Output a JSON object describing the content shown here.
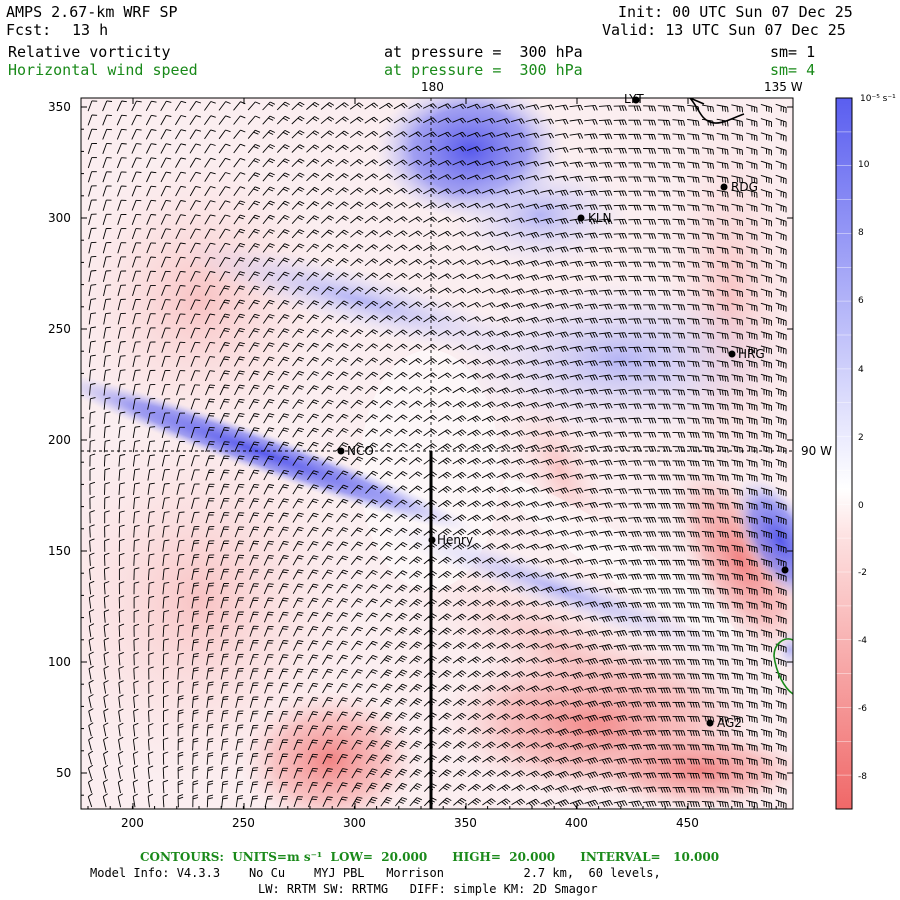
{
  "header": {
    "model": "AMPS 2.67-km WRF SP",
    "fcst_label": "Fcst:",
    "fcst_value": "13 h",
    "init": "Init: 00 UTC Sun 07 Dec 25",
    "valid": "Valid: 13 UTC Sun 07 Dec 25",
    "field1": "Relative vorticity",
    "field2": "Horizontal wind speed",
    "pressure1": "at pressure =  300 hPa",
    "pressure2": "at pressure =  300 hPa",
    "sm1": "sm= 1",
    "sm2": "sm= 4"
  },
  "map": {
    "x_ticks": [
      "200",
      "250",
      "300",
      "350",
      "400",
      "450"
    ],
    "y_ticks": [
      "50",
      "100",
      "150",
      "200",
      "250",
      "300",
      "350"
    ],
    "meridian_labels": {
      "top_180": "180",
      "top_135w": "135 W",
      "right_90w": "90 W"
    },
    "stations": [
      {
        "label": "LYT"
      },
      {
        "label": "RDG"
      },
      {
        "label": "KLN"
      },
      {
        "label": "HRG"
      },
      {
        "label": "NCO"
      },
      {
        "label": "Henry"
      },
      {
        "label": "AG2"
      }
    ]
  },
  "colorbar": {
    "unit": "10⁻⁵ s⁻¹",
    "labels": [
      "10",
      "8",
      "6",
      "4",
      "2",
      "0",
      "-2",
      "-4",
      "-6",
      "-8"
    ],
    "colors": {
      "positive_strong": "#5a5ef0",
      "positive_weak": "#e8e8ff",
      "negative_weak": "#ffe8e8",
      "negative_strong": "#f07070"
    }
  },
  "footer": {
    "contours": "CONTOURS:  UNITS=m s⁻¹  LOW=  20.000      HIGH=  20.000      INTERVAL=   10.000",
    "model_info": "Model Info: V4.3.3    No Cu    MYJ PBL   Morrison           2.7 km,  60 levels,",
    "physics": "LW: RRTM SW: RRTMG   DIFF: simple KM: 2D Smagor"
  }
}
